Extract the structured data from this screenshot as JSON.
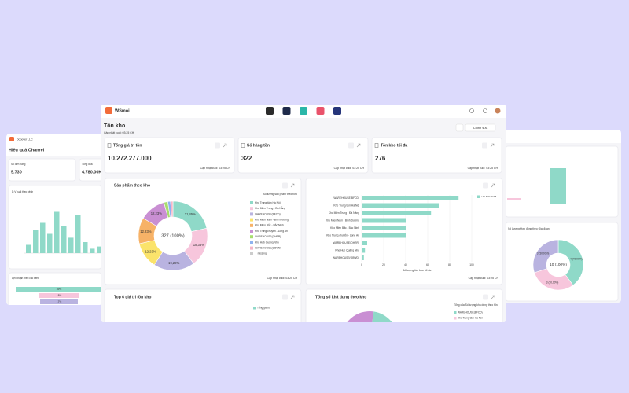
{
  "app": {
    "name": "WSmoi"
  },
  "page": {
    "title": "Tồn kho",
    "updated": "Cập nhật cuối: 03:25 CH",
    "edit_button": "Chỉnh sửa"
  },
  "kpis": [
    {
      "title": "Tổng giá trị tồn",
      "value": "10.272.277.000",
      "updated": "Cập nhật cuối: 03:25 CH"
    },
    {
      "title": "Số hàng tồn",
      "value": "322",
      "updated": "Cập nhật cuối: 03:25 CH"
    },
    {
      "title": "Tồn kho tối đa",
      "value": "276",
      "updated": "Cập nhật cuối: 03:25 CH"
    }
  ],
  "products_by_warehouse": {
    "type": "pie",
    "title": "Sản phẩm theo kho",
    "subtitle": "Số lượng sản phẩm theo Kho",
    "center_label": "327 (100%)",
    "categories": [
      "Kho Trung tâm Hà Nội",
      "Kho Miền Trung - Đà Nẵng",
      "WAREHOUSE(BFCD)",
      "Kho Miền Nam - Bình Dương",
      "Kho Miền Bắc - Bắc Ninh",
      "Kho Trung chuyển - Long An",
      "WAREHOUSE(QHRR)",
      "Kho Hub Quảng Nhu",
      "WAREHOUSE(QBWD)",
      "__missing__"
    ],
    "values": [
      21.45,
      18.35,
      19.29,
      12.23,
      12.23,
      12.23,
      1.8,
      1.3,
      1.12,
      null
    ],
    "value_labels": [
      "21,45%",
      "18,35%",
      "19,29%",
      "12,23%",
      "12,23%",
      "12,23%",
      null,
      null,
      null,
      null
    ],
    "colors": [
      "#8fd9c8",
      "#f7c6dc",
      "#b9b3e0",
      "#fbe36b",
      "#f7b267",
      "#c98fd3",
      "#a8dd6e",
      "#8fb3f0",
      "#f4b6c8",
      "#cccccc"
    ],
    "updated": "Cập nhật cuối: 03:25 CH"
  },
  "max_stock": {
    "type": "bar",
    "legend": "Tồn kho tối đa",
    "color": "#8fd9c8",
    "categories": [
      "WAREHOUSE(BFCD)",
      "Kho Trung tâm Hà Nội",
      "Kho Miền Trung - Đà Nẵng",
      "Kho Miền Nam - Bình Dương",
      "Kho Miền Bắc - Bắc Ninh",
      "Kho Trung chuyển - Long An",
      "WAREHOUSE(QHRR)",
      "Kho Hub Quảng Nhu",
      "WAREHOUSE(QBWD)"
    ],
    "values": [
      88,
      70,
      63,
      40,
      40,
      40,
      5,
      3,
      2
    ],
    "xlim": [
      0,
      100
    ],
    "xticks": [
      0,
      20,
      40,
      60,
      80,
      100
    ],
    "xlabel": "Số lượng tồn kho tối đa",
    "updated": "Cập nhật cuối: 03:25 CH"
  },
  "top6": {
    "title": "Top 6 giá trị tồn kho",
    "legend": "Tổng giá trị"
  },
  "available": {
    "title": "Tổng số khả dụng theo kho",
    "subtitle": "Tổng của Số lượng khả dụng theo Kho",
    "legend": [
      "WAREHOUSE(BFCD)",
      "Kho Trung tâm Hà Nội"
    ]
  },
  "left_window": {
    "company": "Dopover LLC",
    "title": "Hiệu quả Chanrei",
    "kpis": [
      {
        "title": "Số đơn hàng",
        "value": "5.730"
      },
      {
        "title": "Tổng doa",
        "value": "4.780.00K"
      }
    ],
    "bar_title": "D.V xuất theo kênh",
    "bar_values": [
      15,
      42,
      55,
      35,
      75,
      50,
      28,
      70,
      20,
      8,
      12
    ],
    "ylim": [
      0,
      100
    ],
    "profit_title": "Lợi nhuận theo các kênh",
    "profit_values": [
      39,
      18,
      17
    ],
    "profit_labels": [
      "39%",
      "18%",
      "17%"
    ]
  },
  "right_window": {
    "title": "Số Lượng Hợp đồng theo Giai đoạn",
    "center_label": "10 (100%)",
    "values": [
      4,
      3,
      3
    ],
    "value_labels": [
      "4 (40,00%)",
      "3 (30,00%)",
      "3 (30,00%)"
    ],
    "colors": [
      "#8fd9c8",
      "#f7c6dc",
      "#b9b3e0"
    ]
  }
}
